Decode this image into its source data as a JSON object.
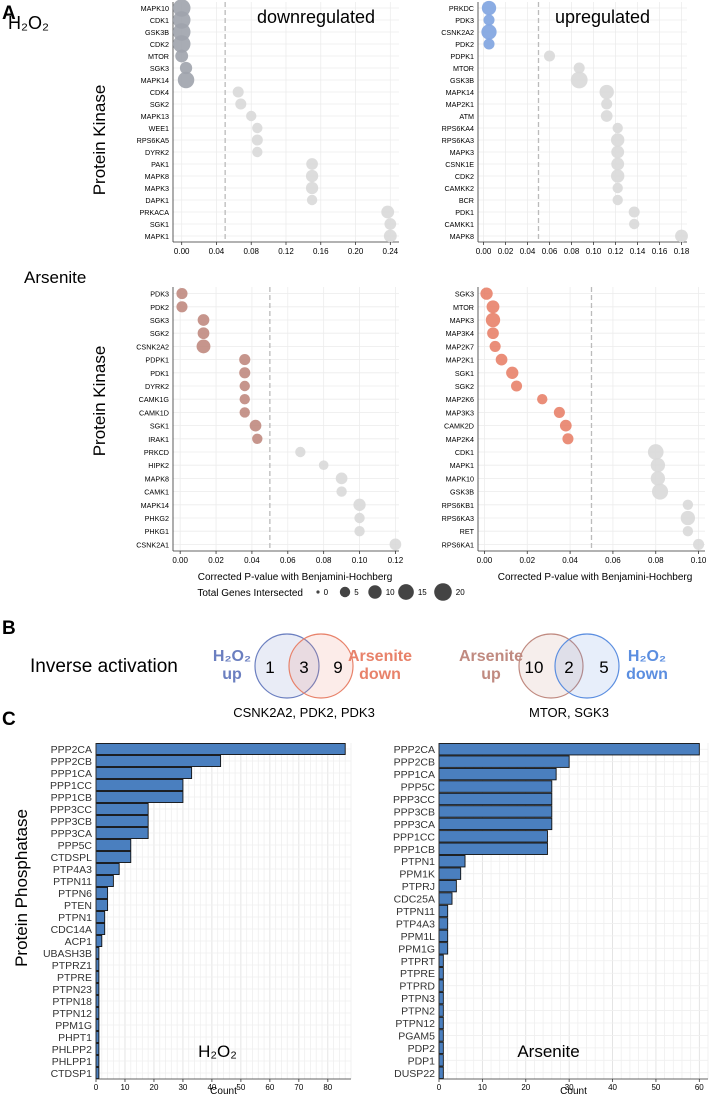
{
  "panel_labels": {
    "a": "A",
    "b": "B",
    "c": "C"
  },
  "panel_a": {
    "row_labels": {
      "h2o2": "H₂O₂",
      "arsenite": "Arsenite"
    },
    "ylabel": "Protein Kinase",
    "xlabel": "Corrected P-value with Benjamini-Hochberg",
    "legend": {
      "title": "Total Genes Intersected",
      "sizes": [
        0,
        5,
        10,
        15,
        20
      ]
    }
  },
  "chart_data": [
    {
      "type": "scatter",
      "title": "downregulated",
      "row": "H₂O₂",
      "color": "#9ea3ac",
      "xlim": [
        -0.01,
        0.25
      ],
      "threshold": 0.05,
      "xticks": [
        0,
        0.04,
        0.08,
        0.12,
        0.16,
        0.2,
        0.24
      ],
      "tick_labels": [
        "0.00",
        "0.04",
        "0.08",
        "0.12",
        "0.16",
        "0.20",
        "0.24"
      ],
      "points": [
        {
          "y": "MAPK10",
          "x": 0,
          "n": 20,
          "sig": true
        },
        {
          "y": "CDK1",
          "x": 0,
          "n": 20,
          "sig": true
        },
        {
          "y": "GSK3B",
          "x": 0,
          "n": 20,
          "sig": true
        },
        {
          "y": "CDK2",
          "x": 0,
          "n": 20,
          "sig": true
        },
        {
          "y": "MTOR",
          "x": 0,
          "n": 9,
          "sig": true
        },
        {
          "y": "SGK3",
          "x": 0.005,
          "n": 8,
          "sig": true
        },
        {
          "y": "MAPK14",
          "x": 0.005,
          "n": 17,
          "sig": true
        },
        {
          "y": "CDK4",
          "x": 0.065,
          "n": 6,
          "sig": false
        },
        {
          "y": "SGK2",
          "x": 0.068,
          "n": 6,
          "sig": false
        },
        {
          "y": "MAPK13",
          "x": 0.08,
          "n": 5,
          "sig": false
        },
        {
          "y": "WEE1",
          "x": 0.087,
          "n": 5,
          "sig": false
        },
        {
          "y": "RPS6KA5",
          "x": 0.087,
          "n": 6,
          "sig": false
        },
        {
          "y": "DYRK2",
          "x": 0.087,
          "n": 5,
          "sig": false
        },
        {
          "y": "PAK1",
          "x": 0.15,
          "n": 7,
          "sig": false
        },
        {
          "y": "MAPK8",
          "x": 0.15,
          "n": 8,
          "sig": false
        },
        {
          "y": "MAPK3",
          "x": 0.15,
          "n": 8,
          "sig": false
        },
        {
          "y": "DAPK1",
          "x": 0.15,
          "n": 5,
          "sig": false
        },
        {
          "y": "PRKACA",
          "x": 0.237,
          "n": 9,
          "sig": false
        },
        {
          "y": "SGK1",
          "x": 0.24,
          "n": 7,
          "sig": false
        },
        {
          "y": "MAPK1",
          "x": 0.24,
          "n": 9,
          "sig": false
        }
      ]
    },
    {
      "type": "scatter",
      "title": "upregulated",
      "row": "H₂O₂",
      "color": "#7ea3e0",
      "xlim": [
        -0.005,
        0.185
      ],
      "threshold": 0.05,
      "xticks": [
        0,
        0.02,
        0.04,
        0.06,
        0.08,
        0.1,
        0.12,
        0.14,
        0.16,
        0.18
      ],
      "tick_labels": [
        "0.00",
        "0.02",
        "0.04",
        "0.06",
        "0.08",
        "0.10",
        "0.12",
        "0.14",
        "0.16",
        "0.18"
      ],
      "points": [
        {
          "y": "PRKDC",
          "x": 0.005,
          "n": 12,
          "sig": true
        },
        {
          "y": "PDK3",
          "x": 0.005,
          "n": 6,
          "sig": true
        },
        {
          "y": "CSNK2A2",
          "x": 0.005,
          "n": 14,
          "sig": true
        },
        {
          "y": "PDK2",
          "x": 0.005,
          "n": 6,
          "sig": true
        },
        {
          "y": "PDPK1",
          "x": 0.06,
          "n": 6,
          "sig": false
        },
        {
          "y": "MTOR",
          "x": 0.087,
          "n": 6,
          "sig": false
        },
        {
          "y": "GSK3B",
          "x": 0.087,
          "n": 18,
          "sig": false
        },
        {
          "y": "MAPK14",
          "x": 0.112,
          "n": 12,
          "sig": false
        },
        {
          "y": "MAP2K1",
          "x": 0.112,
          "n": 6,
          "sig": false
        },
        {
          "y": "ATM",
          "x": 0.112,
          "n": 7,
          "sig": false
        },
        {
          "y": "RPS6KA4",
          "x": 0.122,
          "n": 5,
          "sig": false
        },
        {
          "y": "RPS6KA3",
          "x": 0.122,
          "n": 10,
          "sig": false
        },
        {
          "y": "MAPK3",
          "x": 0.122,
          "n": 9,
          "sig": false
        },
        {
          "y": "CSNK1E",
          "x": 0.122,
          "n": 9,
          "sig": false
        },
        {
          "y": "CDK2",
          "x": 0.122,
          "n": 10,
          "sig": false
        },
        {
          "y": "CAMKK2",
          "x": 0.122,
          "n": 5,
          "sig": false
        },
        {
          "y": "BCR",
          "x": 0.122,
          "n": 5,
          "sig": false
        },
        {
          "y": "PDK1",
          "x": 0.137,
          "n": 6,
          "sig": false
        },
        {
          "y": "CAMKK1",
          "x": 0.137,
          "n": 5,
          "sig": false
        },
        {
          "y": "MAPK8",
          "x": 0.18,
          "n": 9,
          "sig": false
        }
      ]
    },
    {
      "type": "scatter",
      "title": "",
      "row": "Arsenite",
      "color": "#c08a80",
      "xlim": [
        -0.004,
        0.122
      ],
      "threshold": 0.05,
      "xticks": [
        0,
        0.02,
        0.04,
        0.06,
        0.08,
        0.1,
        0.12
      ],
      "tick_labels": [
        "0.00",
        "0.02",
        "0.04",
        "0.06",
        "0.08",
        "0.10",
        "0.12"
      ],
      "points": [
        {
          "y": "PDK3",
          "x": 0.001,
          "n": 6,
          "sig": true
        },
        {
          "y": "PDK2",
          "x": 0.001,
          "n": 6,
          "sig": true
        },
        {
          "y": "SGK3",
          "x": 0.013,
          "n": 7,
          "sig": true
        },
        {
          "y": "SGK2",
          "x": 0.013,
          "n": 7,
          "sig": true
        },
        {
          "y": "CSNK2A2",
          "x": 0.013,
          "n": 11,
          "sig": true
        },
        {
          "y": "PDPK1",
          "x": 0.036,
          "n": 6,
          "sig": true
        },
        {
          "y": "PDK1",
          "x": 0.036,
          "n": 6,
          "sig": true
        },
        {
          "y": "DYRK2",
          "x": 0.036,
          "n": 5,
          "sig": true
        },
        {
          "y": "CAMK1G",
          "x": 0.036,
          "n": 5,
          "sig": true
        },
        {
          "y": "CAMK1D",
          "x": 0.036,
          "n": 5,
          "sig": true
        },
        {
          "y": "SGK1",
          "x": 0.042,
          "n": 7,
          "sig": true
        },
        {
          "y": "IRAK1",
          "x": 0.043,
          "n": 5,
          "sig": true
        },
        {
          "y": "PRKCD",
          "x": 0.067,
          "n": 5,
          "sig": false
        },
        {
          "y": "HIPK2",
          "x": 0.08,
          "n": 4,
          "sig": false
        },
        {
          "y": "MAPK8",
          "x": 0.09,
          "n": 7,
          "sig": false
        },
        {
          "y": "CAMK1",
          "x": 0.09,
          "n": 5,
          "sig": false
        },
        {
          "y": "MAPK14",
          "x": 0.1,
          "n": 8,
          "sig": false
        },
        {
          "y": "PHKG2",
          "x": 0.1,
          "n": 5,
          "sig": false
        },
        {
          "y": "PHKG1",
          "x": 0.1,
          "n": 5,
          "sig": false
        },
        {
          "y": "CSNK2A1",
          "x": 0.12,
          "n": 7,
          "sig": false
        }
      ]
    },
    {
      "type": "scatter",
      "title": "",
      "row": "Arsenite",
      "color": "#e8826a",
      "xlim": [
        -0.003,
        0.103
      ],
      "threshold": 0.05,
      "xticks": [
        0,
        0.02,
        0.04,
        0.06,
        0.08,
        0.1
      ],
      "tick_labels": [
        "0.00",
        "0.02",
        "0.04",
        "0.06",
        "0.08",
        "0.10"
      ],
      "points": [
        {
          "y": "SGK3",
          "x": 0.001,
          "n": 8,
          "sig": true
        },
        {
          "y": "MTOR",
          "x": 0.004,
          "n": 9,
          "sig": true
        },
        {
          "y": "MAPK3",
          "x": 0.004,
          "n": 12,
          "sig": true
        },
        {
          "y": "MAP3K4",
          "x": 0.004,
          "n": 7,
          "sig": true
        },
        {
          "y": "MAP2K7",
          "x": 0.005,
          "n": 6,
          "sig": true
        },
        {
          "y": "MAP2K1",
          "x": 0.008,
          "n": 7,
          "sig": true
        },
        {
          "y": "SGK1",
          "x": 0.013,
          "n": 8,
          "sig": true
        },
        {
          "y": "SGK2",
          "x": 0.015,
          "n": 6,
          "sig": true
        },
        {
          "y": "MAP2K6",
          "x": 0.027,
          "n": 5,
          "sig": true
        },
        {
          "y": "MAP3K3",
          "x": 0.035,
          "n": 6,
          "sig": true
        },
        {
          "y": "CAMK2D",
          "x": 0.038,
          "n": 7,
          "sig": true
        },
        {
          "y": "MAP2K4",
          "x": 0.039,
          "n": 6,
          "sig": true
        },
        {
          "y": "CDK1",
          "x": 0.08,
          "n": 15,
          "sig": false
        },
        {
          "y": "MAPK1",
          "x": 0.081,
          "n": 12,
          "sig": false
        },
        {
          "y": "MAPK10",
          "x": 0.081,
          "n": 12,
          "sig": false
        },
        {
          "y": "GSK3B",
          "x": 0.082,
          "n": 16,
          "sig": false
        },
        {
          "y": "RPS6KB1",
          "x": 0.095,
          "n": 5,
          "sig": false
        },
        {
          "y": "RPS6KA3",
          "x": 0.095,
          "n": 12,
          "sig": false
        },
        {
          "y": "RET",
          "x": 0.095,
          "n": 5,
          "sig": false
        },
        {
          "y": "RPS6KA1",
          "x": 0.1,
          "n": 6,
          "sig": false
        }
      ]
    },
    {
      "type": "bar",
      "orientation": "horizontal",
      "title": "H₂O₂",
      "xlabel": "Count",
      "ylabel": "Protein Phosphatase",
      "xlim": [
        0,
        88
      ],
      "xticks": [
        0,
        10,
        20,
        30,
        40,
        50,
        60,
        70,
        80
      ],
      "categories": [
        "PPP2CA",
        "PPP2CB",
        "PPP1CA",
        "PPP1CC",
        "PPP1CB",
        "PPP3CC",
        "PPP3CB",
        "PPP3CA",
        "PPP5C",
        "CTDSPL",
        "PTP4A3",
        "PTPN11",
        "PTPN6",
        "PTEN",
        "PTPN1",
        "CDC14A",
        "ACP1",
        "UBASH3B",
        "PTPRZ1",
        "PTPRE",
        "PTPN23",
        "PTPN18",
        "PTPN12",
        "PPM1G",
        "PHPT1",
        "PHLPP2",
        "PHLPP1",
        "CTDSP1"
      ],
      "values": [
        86,
        43,
        33,
        30,
        30,
        18,
        18,
        18,
        12,
        12,
        8,
        6,
        4,
        4,
        3,
        3,
        2,
        1,
        1,
        1,
        1,
        1,
        1,
        1,
        1,
        1,
        1,
        1
      ]
    },
    {
      "type": "bar",
      "orientation": "horizontal",
      "title": "Arsenite",
      "xlabel": "Count",
      "ylabel": "",
      "xlim": [
        0,
        62
      ],
      "xticks": [
        0,
        10,
        20,
        30,
        40,
        50,
        60
      ],
      "categories": [
        "PPP2CA",
        "PPP2CB",
        "PPP1CA",
        "PPP5C",
        "PPP3CC",
        "PPP3CB",
        "PPP3CA",
        "PPP1CC",
        "PPP1CB",
        "PTPN1",
        "PPM1K",
        "PTPRJ",
        "CDC25A",
        "PTPN11",
        "PTP4A3",
        "PPM1L",
        "PPM1G",
        "PTPRT",
        "PTPRE",
        "PTPRD",
        "PTPN3",
        "PTPN2",
        "PTPN12",
        "PGAM5",
        "PDP2",
        "PDP1",
        "DUSP22"
      ],
      "values": [
        60,
        30,
        27,
        26,
        26,
        26,
        26,
        25,
        25,
        6,
        5,
        4,
        3,
        2,
        2,
        2,
        2,
        1,
        1,
        1,
        1,
        1,
        1,
        1,
        1,
        1,
        1
      ]
    }
  ],
  "panel_b": {
    "label": "Inverse activation",
    "venn1": {
      "left": "H₂O₂ up",
      "right": "Arsenite down",
      "left_only": "1",
      "both": "3",
      "right_only": "9",
      "genes": "CSNK2A2, PDK2, PDK3",
      "left_color": "#6b7fc0",
      "right_color": "#e8826a"
    },
    "venn2": {
      "left": "Arsenite up",
      "right": "H₂O₂ down",
      "left_only": "10",
      "both": "2",
      "right_only": "5",
      "genes": "MTOR, SGK3",
      "left_color": "#c08a80",
      "right_color": "#5b8ee0"
    }
  }
}
